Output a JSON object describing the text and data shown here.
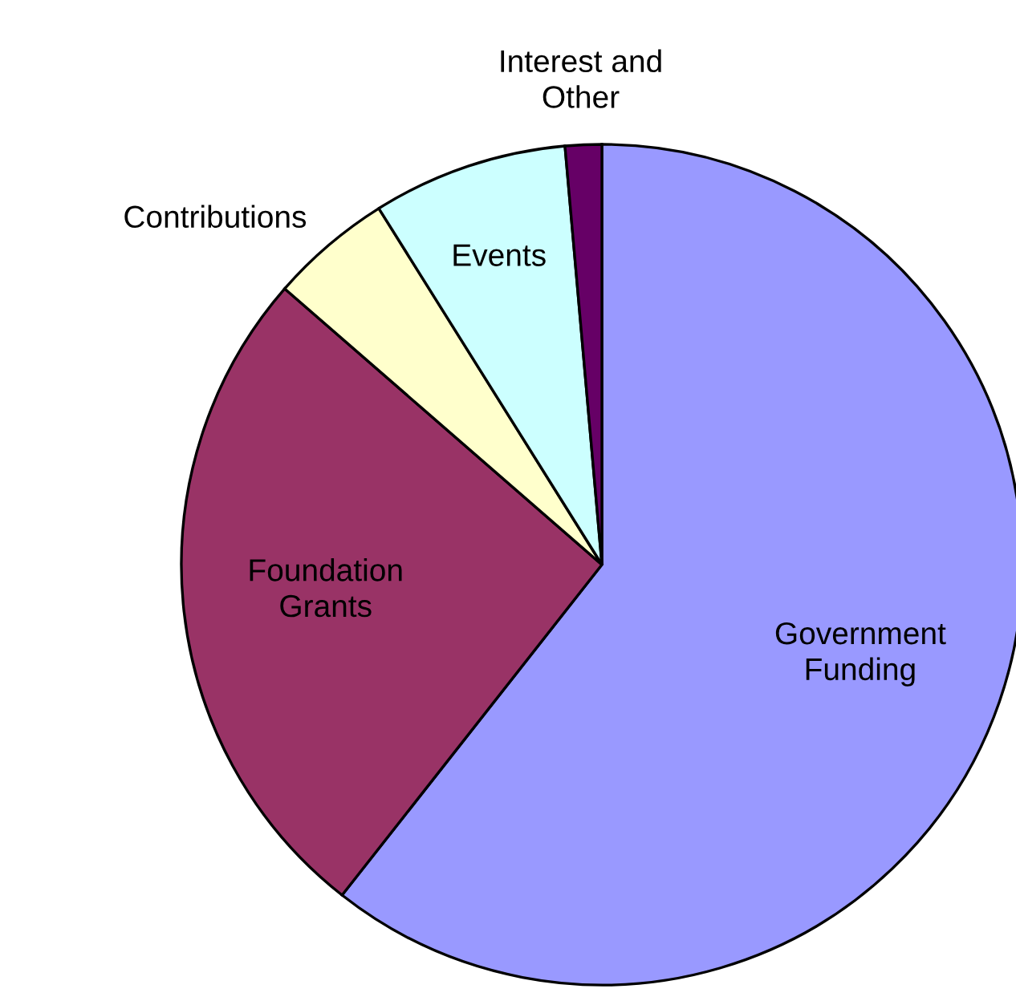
{
  "chart_data": {
    "type": "pie",
    "categories": [
      "Government\nFunding",
      "Foundation\nGrants",
      "Contributions",
      "Events",
      "Interest and\nOther"
    ],
    "values": [
      60.6,
      25.8,
      4.7,
      7.5,
      1.4
    ],
    "colors": [
      "#9999ff",
      "#993366",
      "#ffffcc",
      "#ccffff",
      "#660066"
    ],
    "legend": false
  }
}
